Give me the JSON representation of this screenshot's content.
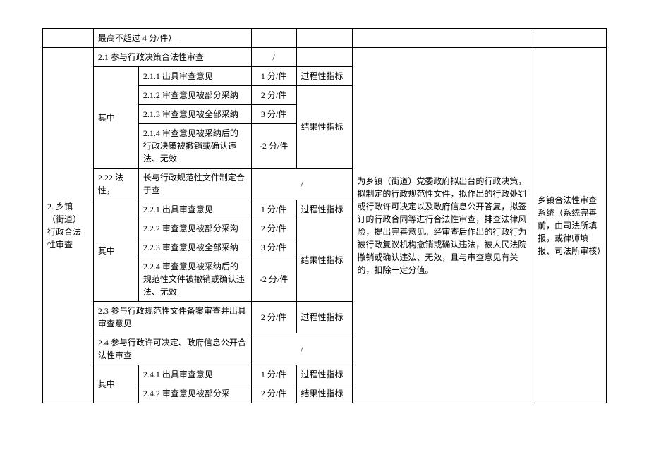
{
  "row_top_note": "最高不超过 4 分/件）",
  "category2": {
    "label": "2. 乡镇（街道）行政合法性审查",
    "description": "为乡镇（街道）党委政府拟出台的行政决策，拟制定的行政规范性文件，拟作出的行政处罚或行政许可决定以及政府信息公开答复，拟签订的行政合同等进行合法性审查，排查法律风险，提出完善意见。经审查后作出的行政行为被行政复议机构撤销或确认违法，被人民法院撤销或确认违法、无效，且与审查意见有关的，扣除一定分值。",
    "source": "乡镇合法性审查系统（系统完善前，由司法所填报，或律师填报、司法所审核）"
  },
  "sec21": {
    "title": "2.1 参与行政决策合法性审查",
    "title_score": "/",
    "qizhong": "其中",
    "r1": {
      "label": "2.1.1 出具审查意见",
      "score": "1 分/件",
      "type": "过程性指标"
    },
    "r2": {
      "label": "2.1.2 审查意见被部分采纳",
      "score": "2 分/件"
    },
    "r3": {
      "label": "2.1.3 审查意见被全部采纳",
      "score": "3 分/件"
    },
    "r4": {
      "label": "2.1.4 审查意见被采纳后的行政决策被撤销或确认违法、无效",
      "score": "-2 分/件"
    },
    "result_type": "结果性指标"
  },
  "sec22": {
    "title_cat": "2.22 法性，",
    "title": "长与行政规范性文件制定合于查",
    "title_score": "/",
    "qizhong": "其中",
    "r1": {
      "label": "2.2.1 出具审查意见",
      "score": "1 分/件",
      "type": "过程性指标"
    },
    "r2": {
      "label": "2.2.2 审查意见被部分采沟",
      "score": "2 分/件"
    },
    "r3": {
      "label": "2.2.3 审查意见被全部采纳",
      "score": "3 分/件"
    },
    "r4": {
      "label": "2.2.4 审查意见被采纳后的规范性文件被撤销或确认违法、无效",
      "score": "-2 分/件"
    },
    "result_type": "结果性指标"
  },
  "sec23": {
    "title": "2.3 参与行政规范性文件备案审查并出具审查意见",
    "score": "2 分/件",
    "type": "过程性指标"
  },
  "sec24": {
    "title": "2.4 参与行政许可决定、政府信息公开合法性审查",
    "title_score": "/",
    "qizhong": "其中",
    "r1": {
      "label": "2.4.1 出具审查意见",
      "score": "1 分/件",
      "type": "过程性指标"
    },
    "r2": {
      "label": "2.4.2 审查意见被部分采",
      "score": "2 分/件",
      "type": "结果性指标"
    }
  }
}
